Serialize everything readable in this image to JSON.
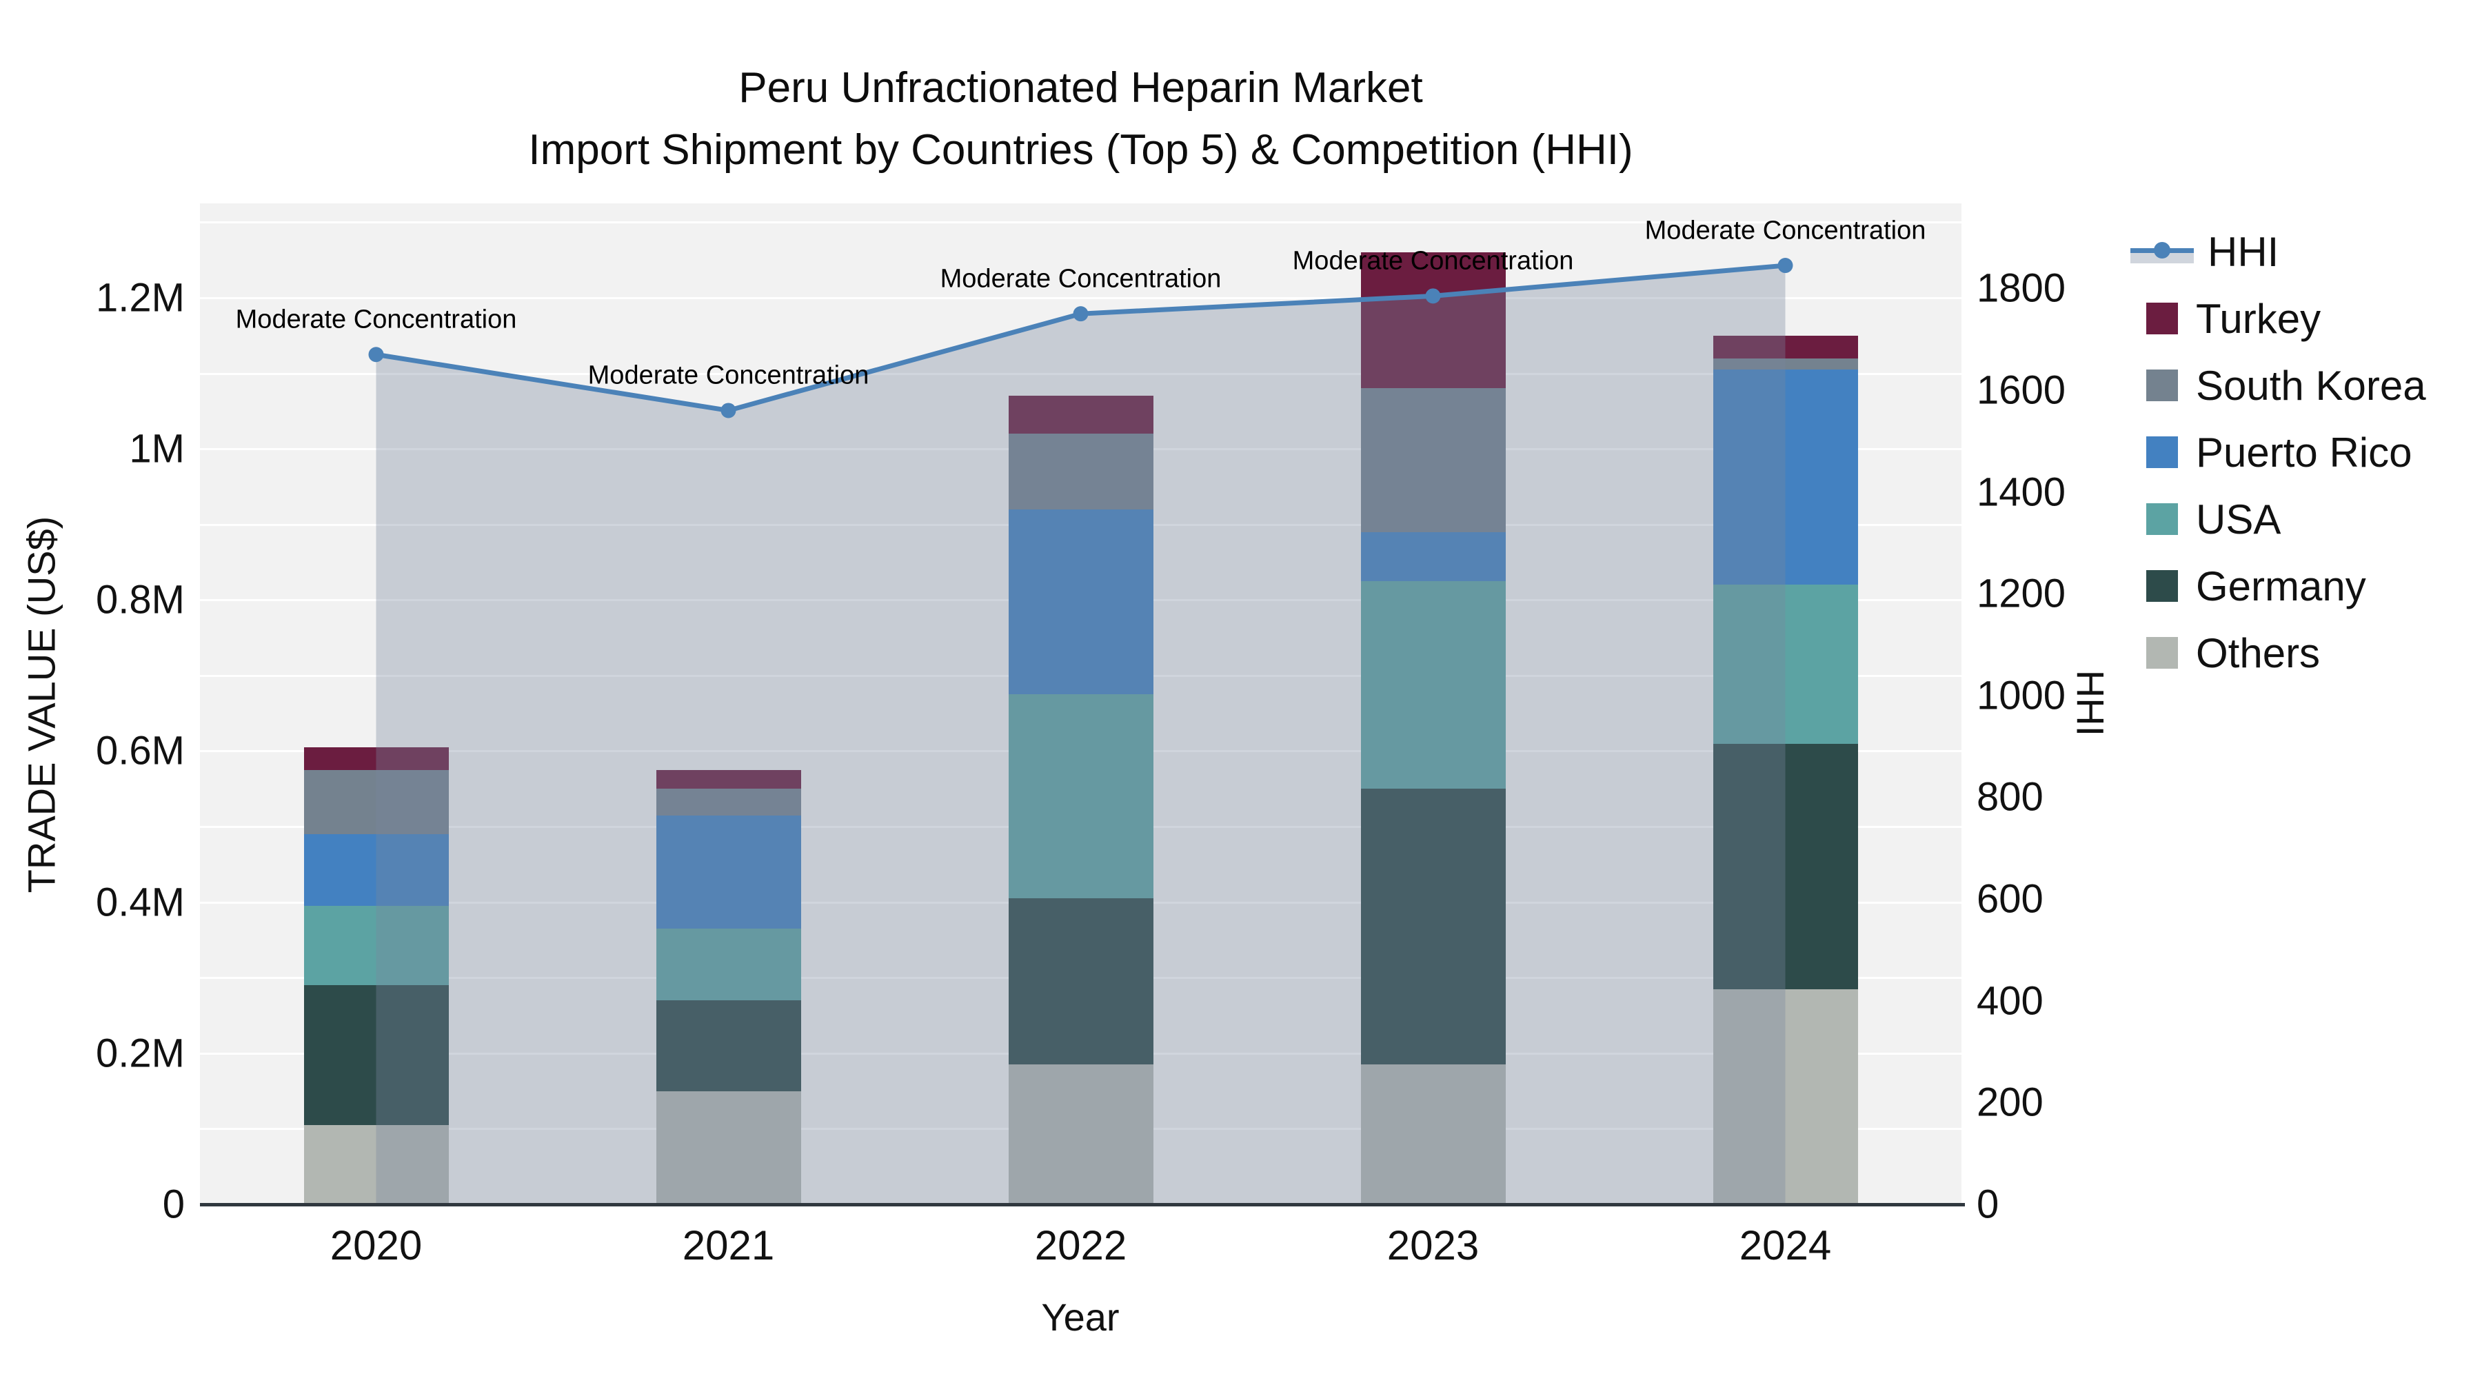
{
  "title": {
    "line1": "Peru Unfractionated Heparin Market",
    "line2": "Import Shipment by Countries (Top 5) & Competition (HHI)"
  },
  "colors": {
    "hhi_line": "#4b82b8",
    "hhi_fill": "rgba(120,135,158,0.35)",
    "plot_background": "#f2f2f2",
    "gridline": "#ffffff",
    "axis_line": "#30383f"
  },
  "legend": {
    "items": [
      {
        "label": "HHI",
        "type": "line",
        "color": "#4b82b8"
      },
      {
        "label": "Turkey",
        "type": "swatch",
        "color": "#6b1d40"
      },
      {
        "label": "South Korea",
        "type": "swatch",
        "color": "#74828f"
      },
      {
        "label": "Puerto Rico",
        "type": "swatch",
        "color": "#4381c1"
      },
      {
        "label": "USA",
        "type": "swatch",
        "color": "#5ca3a3"
      },
      {
        "label": "Germany",
        "type": "swatch",
        "color": "#2d4b4a"
      },
      {
        "label": "Others",
        "type": "swatch",
        "color": "#b2b7b2"
      }
    ]
  },
  "chart_data": {
    "type": "bar",
    "subtype": "stacked-bars-with-line-overlay",
    "categories": [
      "2020",
      "2021",
      "2022",
      "2023",
      "2024"
    ],
    "series": [
      {
        "name": "Others",
        "color": "#b2b7b2",
        "values": [
          105000,
          150000,
          185000,
          185000,
          285000
        ]
      },
      {
        "name": "Germany",
        "color": "#2d4b4a",
        "values": [
          185000,
          120000,
          220000,
          365000,
          325000
        ]
      },
      {
        "name": "USA",
        "color": "#5ca3a3",
        "values": [
          105000,
          95000,
          270000,
          275000,
          210000
        ]
      },
      {
        "name": "Puerto Rico",
        "color": "#4381c1",
        "values": [
          95000,
          150000,
          245000,
          65000,
          285000
        ]
      },
      {
        "name": "South Korea",
        "color": "#74828f",
        "values": [
          85000,
          35000,
          100000,
          190000,
          15000
        ]
      },
      {
        "name": "Turkey",
        "color": "#6b1d40",
        "values": [
          30000,
          25000,
          50000,
          180000,
          30000
        ]
      }
    ],
    "bar_totals": [
      605000,
      575000,
      1070000,
      1260000,
      1150000
    ],
    "line_series": {
      "name": "HHI",
      "color": "#4b82b8",
      "fill_color": "rgba(120,135,158,0.35)",
      "values": [
        1670,
        1560,
        1750,
        1785,
        1845
      ]
    },
    "annotations": [
      {
        "text": "Moderate Concentration",
        "category": "2020"
      },
      {
        "text": "Moderate Concentration",
        "category": "2021"
      },
      {
        "text": "Moderate Concentration",
        "category": "2022"
      },
      {
        "text": "Moderate Concentration",
        "category": "2023"
      },
      {
        "text": "Moderate Concentration",
        "category": "2024"
      }
    ],
    "left_axis": {
      "title": "TRADE VALUE (US$)",
      "tick_labels": [
        "0",
        "0.2M",
        "0.4M",
        "0.6M",
        "0.8M",
        "1M",
        "1.2M"
      ],
      "tick_values": [
        0,
        200000,
        400000,
        600000,
        800000,
        1000000,
        1200000
      ],
      "range_max": 1325000
    },
    "right_axis": {
      "title": "HHI",
      "tick_labels": [
        "0",
        "200",
        "400",
        "600",
        "800",
        "1000",
        "1200",
        "1400",
        "1600",
        "1800"
      ],
      "tick_values": [
        0,
        200,
        400,
        600,
        800,
        1000,
        1200,
        1400,
        1600,
        1800
      ],
      "range_max": 1967
    },
    "x_axis": {
      "title": "Year"
    },
    "grid": {
      "on": true,
      "minor_step_value": 100000
    },
    "legend_position": "right"
  }
}
